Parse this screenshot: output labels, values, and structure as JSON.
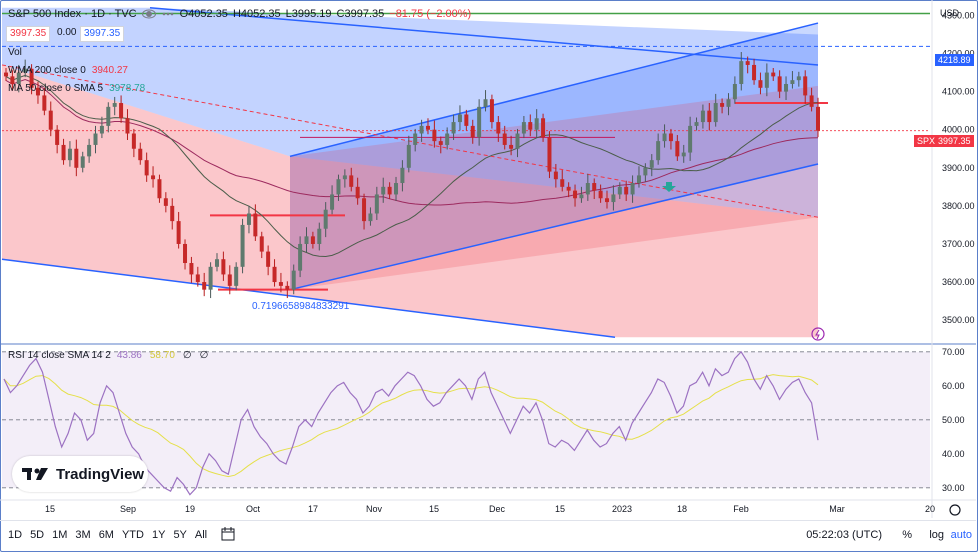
{
  "header": {
    "symbol": "S&P 500 Index · 1D · TVC",
    "open": "O4052.35",
    "high": "H4052.35",
    "low": "L3995.19",
    "close": "C3997.35",
    "change": "−81.75 (−2.00%)",
    "bid": "3997.35",
    "spread": "0.00",
    "ask": "3997.35"
  },
  "indicators": {
    "vol_label": "Vol",
    "wma_label": "WMA 200 close 0",
    "wma_value": "3940.27",
    "ma_label": "MA 50 close 0 SMA 5",
    "ma_value": "3978.78",
    "rsi_label": "RSI 14 close SMA 14 2",
    "rsi_value": "43.86",
    "rsi_sma_value": "58.70",
    "rsi_z1": "∅",
    "rsi_z2": "∅"
  },
  "annotation_fib": "0.7196658984833291",
  "price_axis": {
    "currency": "USD",
    "ticks": [
      "4300.00",
      "4200.00",
      "4100.00",
      "4000.00",
      "3900.00",
      "3800.00",
      "3700.00",
      "3600.00",
      "3500.00"
    ],
    "tag_top": "4218.89",
    "tag_symbol": "SPX",
    "tag_price": "3997.35"
  },
  "rsi_axis": {
    "ticks": [
      "70.00",
      "60.00",
      "50.00",
      "40.00",
      "30.00"
    ]
  },
  "time_axis": [
    "15",
    "Sep",
    "19",
    "Oct",
    "17",
    "Nov",
    "15",
    "Dec",
    "15",
    "2023",
    "18",
    "Feb",
    "Mar",
    "20"
  ],
  "bottom": {
    "timeframes": [
      "1D",
      "5D",
      "1M",
      "3M",
      "6M",
      "YTD",
      "1Y",
      "5Y",
      "All"
    ],
    "clock": "05:22:03 (UTC)",
    "percent": "%",
    "log": "log",
    "auto": "auto"
  },
  "logo": "TradingView",
  "colors": {
    "up": "#26a69a",
    "down": "#ef5350",
    "candle_body_up": "#7f8c8d",
    "blue_zone": "#2962ff",
    "red_zone": "#f23645",
    "rsi_line": "#9c72c2",
    "rsi_sma": "#e5e04a",
    "resistance": "#43a047"
  },
  "chart_data": {
    "type": "candlestick",
    "ylim": [
      3440,
      4330
    ],
    "rsi_ylim": [
      27,
      72
    ],
    "candles_close": [
      4140,
      4120,
      4150,
      4160,
      4110,
      4090,
      4050,
      4000,
      3960,
      3920,
      3950,
      3900,
      3930,
      3960,
      3990,
      4010,
      4060,
      4070,
      4030,
      3990,
      3950,
      3920,
      3880,
      3870,
      3820,
      3800,
      3760,
      3700,
      3650,
      3620,
      3600,
      3580,
      3640,
      3660,
      3620,
      3590,
      3640,
      3750,
      3780,
      3720,
      3680,
      3640,
      3600,
      3590,
      3580,
      3630,
      3700,
      3720,
      3700,
      3740,
      3790,
      3830,
      3870,
      3880,
      3850,
      3820,
      3760,
      3780,
      3830,
      3850,
      3830,
      3860,
      3900,
      3960,
      3990,
      4010,
      4000,
      3970,
      3960,
      3990,
      4020,
      4040,
      4010,
      3980,
      4060,
      4080,
      4020,
      3990,
      3960,
      3950,
      3990,
      4020,
      4000,
      4030,
      3980,
      3890,
      3870,
      3850,
      3840,
      3820,
      3830,
      3860,
      3840,
      3820,
      3810,
      3830,
      3850,
      3830,
      3860,
      3880,
      3900,
      3920,
      3970,
      3990,
      3970,
      3930,
      3940,
      4010,
      4020,
      4050,
      4020,
      4070,
      4060,
      4080,
      4120,
      4180,
      4170,
      4130,
      4110,
      4150,
      4140,
      4100,
      4120,
      4130,
      4140,
      4090,
      4060,
      3997.35
    ],
    "rsi": [
      62,
      58,
      60,
      63,
      66,
      68,
      64,
      56,
      48,
      42,
      46,
      52,
      50,
      44,
      46,
      55,
      60,
      58,
      52,
      46,
      42,
      40,
      36,
      34,
      32,
      30,
      29,
      33,
      31,
      28,
      30,
      36,
      40,
      38,
      35,
      34,
      42,
      50,
      53,
      48,
      45,
      43,
      40,
      38,
      37,
      42,
      48,
      50,
      48,
      52,
      55,
      58,
      60,
      61,
      58,
      56,
      52,
      54,
      58,
      59,
      57,
      60,
      62,
      64,
      63,
      60,
      56,
      54,
      55,
      58,
      60,
      62,
      60,
      56,
      62,
      64,
      58,
      54,
      50,
      46,
      50,
      54,
      52,
      55,
      50,
      43,
      42,
      44,
      43,
      41,
      44,
      47,
      44,
      42,
      43,
      46,
      48,
      44,
      49,
      52,
      55,
      58,
      62,
      61,
      57,
      52,
      54,
      60,
      61,
      64,
      60,
      65,
      63,
      64,
      68,
      70,
      67,
      62,
      59,
      63,
      60,
      56,
      59,
      61,
      62,
      58,
      55,
      44
    ]
  }
}
